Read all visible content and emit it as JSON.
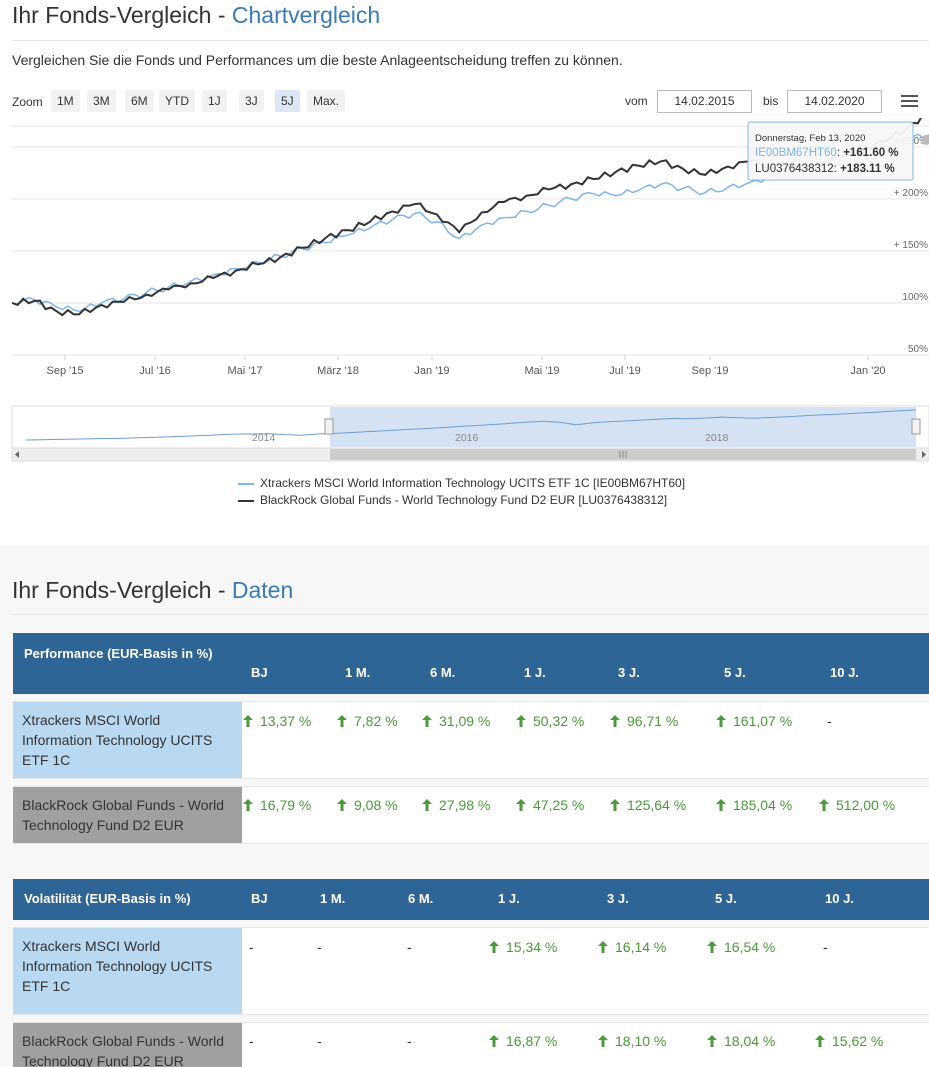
{
  "chart_section": {
    "title_prefix": "Ihr Fonds-Vergleich - ",
    "title_accent": "Chartvergleich",
    "intro": "Vergleichen Sie die Fonds und Performances um die beste Anlageentscheidung treffen zu können.",
    "zoom_label": "Zoom",
    "zoom_buttons": [
      "1M",
      "3M",
      "6M",
      "YTD",
      "1J",
      "3J",
      "5J",
      "Max."
    ],
    "zoom_active": "5J",
    "from_label": "vom",
    "from_value": "14.02.2015",
    "to_label": "bis",
    "to_value": "14.02.2020",
    "tooltip": {
      "date": "Donnerstag, Feb 13, 2020",
      "series1_id": "IE00BM67HT60",
      "series1_value": "+161.60 %",
      "series2_id": "LU0376438312",
      "series2_value": "+183.11 %"
    },
    "navigator_years": [
      "2014",
      "2016",
      "2018"
    ],
    "legend": [
      "Xtrackers MSCI World Information Technology UCITS ETF 1C [IE00BM67HT60]",
      "BlackRock Global Funds - World Technology Fund D2 EUR [LU0376438312]"
    ]
  },
  "chart_data": {
    "type": "line",
    "x_tick_labels": [
      "Sep '15",
      "Jul '16",
      "Mai '17",
      "März '18",
      "Jan '19",
      "Mai '19",
      "Jul '19",
      "Sep '19",
      "Jan '20"
    ],
    "y_tick_labels": [
      "50%",
      "100%",
      "+ 150%",
      "+ 200%",
      "+ 250%"
    ],
    "ylim": [
      50,
      270
    ],
    "x_range": [
      "14.02.2015",
      "14.02.2020"
    ],
    "series": [
      {
        "name": "Xtrackers MSCI World Information Technology UCITS ETF 1C [IE00BM67HT60]",
        "color": "#7cb5ec",
        "values": [
          100,
          103,
          96,
          92,
          100,
          104,
          110,
          115,
          121,
          127,
          133,
          139,
          145,
          152,
          158,
          165,
          172,
          180,
          186,
          178,
          162,
          175,
          182,
          188,
          194,
          200,
          205,
          203,
          208,
          214,
          210,
          206,
          211,
          216,
          222,
          228,
          232,
          238,
          244,
          250,
          257,
          261.6
        ]
      },
      {
        "name": "BlackRock Global Funds - World Technology Fund D2 EUR [LU0376438312]",
        "color": "#333333",
        "values": [
          100,
          102,
          92,
          89,
          98,
          101,
          108,
          113,
          119,
          124,
          131,
          137,
          144,
          153,
          162,
          170,
          178,
          188,
          195,
          185,
          168,
          187,
          197,
          203,
          209,
          214,
          219,
          226,
          232,
          236,
          229,
          223,
          231,
          236,
          230,
          227,
          234,
          240,
          247,
          255,
          268,
          283.11
        ]
      }
    ]
  },
  "data_section": {
    "title_prefix": "Ihr Fonds-Vergleich - ",
    "title_accent": "Daten"
  },
  "performance": {
    "title": "Performance (EUR-Basis in %)",
    "columns": [
      "BJ",
      "1 M.",
      "6 M.",
      "1 J.",
      "3 J.",
      "5 J.",
      "10 J."
    ],
    "rows": [
      {
        "name": "Xtrackers MSCI World Information Technology UCITS ETF 1C",
        "values": [
          "13,37 %",
          "7,82 %",
          "31,09 %",
          "50,32 %",
          "96,71 %",
          "161,07 %",
          "-"
        ]
      },
      {
        "name": "BlackRock Global Funds - World Technology Fund D2 EUR",
        "values": [
          "16,79 %",
          "9,08 %",
          "27,98 %",
          "47,25 %",
          "125,64 %",
          "185,04 %",
          "512,00 %"
        ]
      }
    ]
  },
  "volatility": {
    "title": "Volatilität (EUR-Basis in %)",
    "columns": [
      "BJ",
      "1 M.",
      "6 M.",
      "1 J.",
      "3 J.",
      "5 J.",
      "10 J."
    ],
    "rows": [
      {
        "name": "Xtrackers MSCI World Information Technology UCITS ETF 1C",
        "values": [
          "-",
          "-",
          "-",
          "15,34 %",
          "16,14 %",
          "16,54 %",
          "-"
        ]
      },
      {
        "name": "BlackRock Global Funds - World Technology Fund D2 EUR",
        "values": [
          "-",
          "-",
          "-",
          "16,87 %",
          "18,10 %",
          "18,04 %",
          "15,62 %"
        ]
      }
    ]
  }
}
